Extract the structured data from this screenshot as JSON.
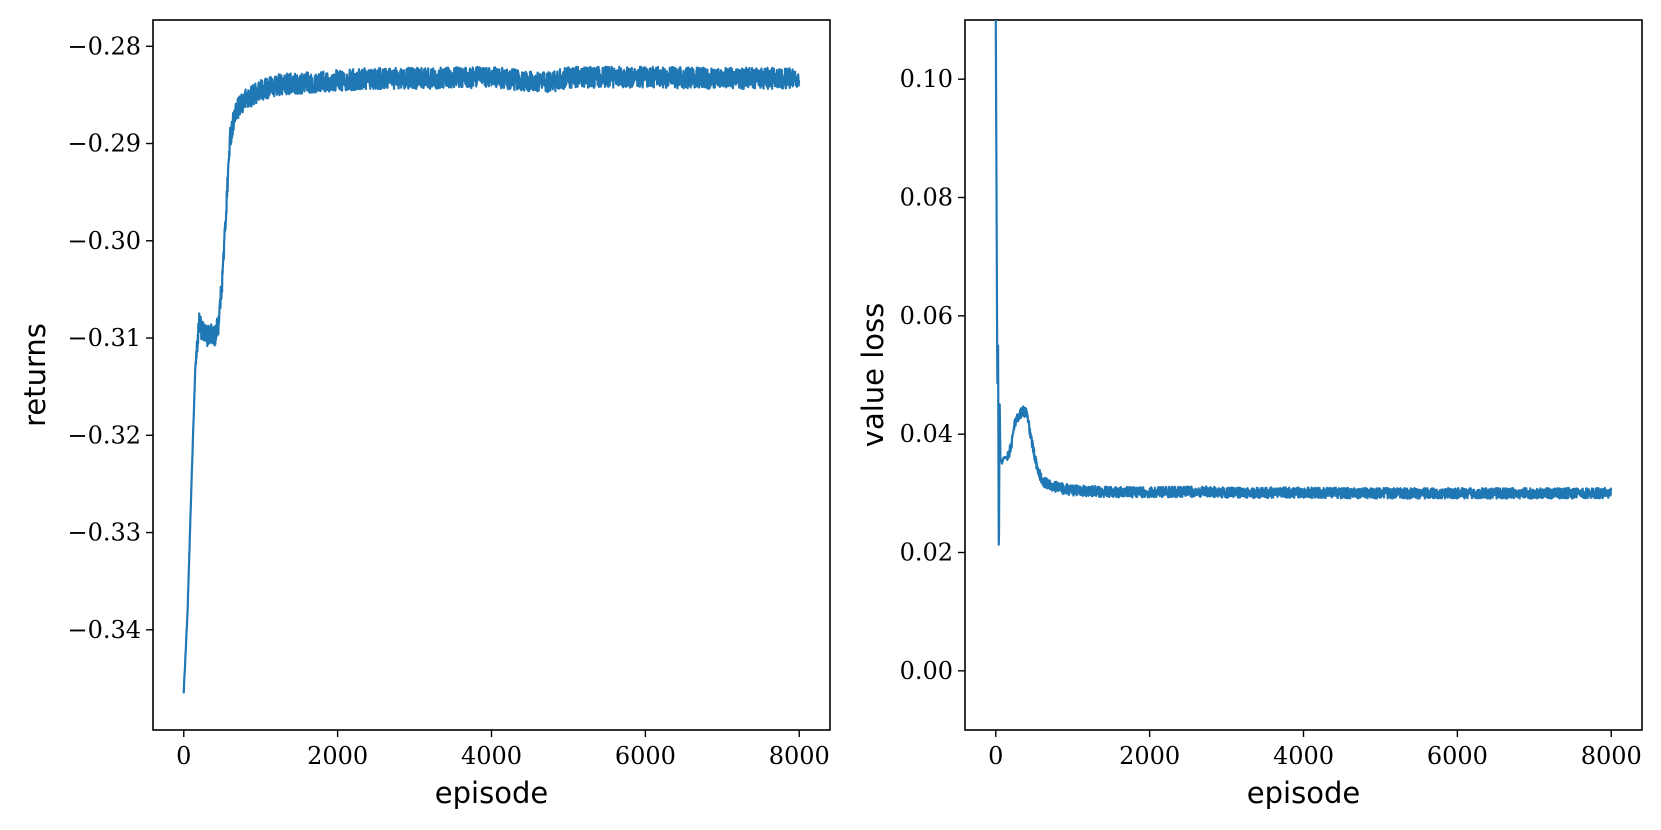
{
  "chart_data": [
    {
      "type": "line",
      "xlabel": "episode",
      "ylabel": "returns",
      "xlim": [
        -400,
        8400
      ],
      "ylim": [
        -0.3503,
        -0.2773
      ],
      "xticks": [
        0,
        2000,
        4000,
        6000,
        8000
      ],
      "xtick_labels": [
        "0",
        "2000",
        "4000",
        "6000",
        "8000"
      ],
      "yticks": [
        -0.34,
        -0.33,
        -0.32,
        -0.31,
        -0.3,
        -0.29,
        -0.28
      ],
      "ytick_labels": [
        "−0.34",
        "−0.33",
        "−0.32",
        "−0.31",
        "−0.30",
        "−0.29",
        "−0.28"
      ],
      "grid": false,
      "color": "#1f77b4",
      "noise": 0.0011,
      "series": [
        {
          "x": [
            0,
            50,
            100,
            150,
            200,
            250,
            300,
            350,
            400,
            450,
            500,
            550,
            600,
            650,
            700,
            800,
            900,
            1000,
            1200,
            1500,
            2000,
            2500,
            3000,
            4000,
            4700,
            5000,
            6000,
            7000,
            8000
          ],
          "y": [
            -0.3463,
            -0.338,
            -0.325,
            -0.313,
            -0.3085,
            -0.3095,
            -0.3098,
            -0.3095,
            -0.31,
            -0.3085,
            -0.304,
            -0.297,
            -0.2895,
            -0.2875,
            -0.2865,
            -0.2855,
            -0.285,
            -0.2845,
            -0.284,
            -0.2838,
            -0.2835,
            -0.2833,
            -0.2833,
            -0.2832,
            -0.2838,
            -0.2832,
            -0.2832,
            -0.2833,
            -0.2833
          ]
        }
      ]
    },
    {
      "type": "line",
      "xlabel": "episode",
      "ylabel": "value loss",
      "xlim": [
        -400,
        8400
      ],
      "ylim": [
        -0.01,
        0.11
      ],
      "xticks": [
        0,
        2000,
        4000,
        6000,
        8000
      ],
      "xtick_labels": [
        "0",
        "2000",
        "4000",
        "6000",
        "8000"
      ],
      "yticks": [
        0.0,
        0.02,
        0.04,
        0.06,
        0.08,
        0.1
      ],
      "ytick_labels": [
        "0.00",
        "0.02",
        "0.04",
        "0.06",
        "0.08",
        "0.10"
      ],
      "grid": false,
      "color": "#1f77b4",
      "noise": 0.0009,
      "series": [
        {
          "x": [
            0,
            10,
            20,
            30,
            40,
            50,
            60,
            80,
            100,
            150,
            200,
            250,
            300,
            350,
            400,
            450,
            500,
            550,
            600,
            700,
            800,
            1000,
            1500,
            2000,
            2800,
            3000,
            4000,
            5000,
            6000,
            7000,
            8000
          ],
          "y": [
            0.11,
            0.08,
            0.048,
            0.055,
            0.0175,
            0.046,
            0.036,
            0.035,
            0.036,
            0.036,
            0.038,
            0.042,
            0.043,
            0.044,
            0.0435,
            0.04,
            0.0365,
            0.034,
            0.032,
            0.0315,
            0.031,
            0.0305,
            0.0302,
            0.0302,
            0.0303,
            0.0301,
            0.0301,
            0.03,
            0.03,
            0.03,
            0.03
          ]
        }
      ]
    }
  ]
}
